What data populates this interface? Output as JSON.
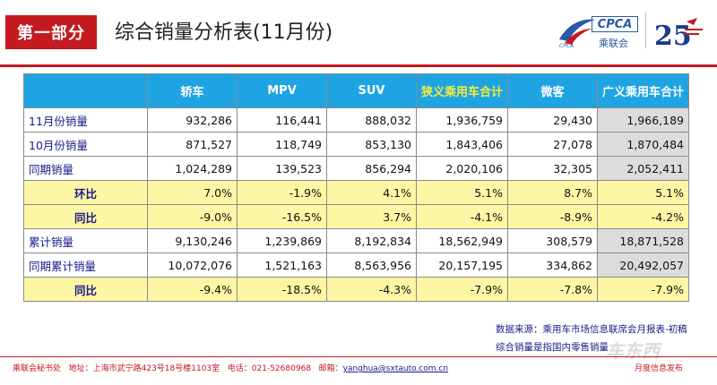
{
  "header": {
    "section_tag": "第一部分",
    "title": "综合销量分析表(11月份)"
  },
  "logo": {
    "cpca_text": "CPCA",
    "cpca_cn": "乘联会",
    "cpca_en": "CPCA",
    "anniversary_number": "25"
  },
  "table": {
    "headers": [
      "",
      "轿车",
      "MPV",
      "SUV",
      "狭义乘用车合计",
      "微客",
      "广义乘用车合计"
    ],
    "rows": [
      {
        "label": "11月份销量",
        "values": [
          "932,286",
          "116,441",
          "888,032",
          "1,936,759",
          "29,430",
          "1,966,189"
        ],
        "type": "data"
      },
      {
        "label": "10月份销量",
        "values": [
          "871,527",
          "118,749",
          "853,130",
          "1,843,406",
          "27,078",
          "1,870,484"
        ],
        "type": "data"
      },
      {
        "label": "同期销量",
        "values": [
          "1,024,289",
          "139,523",
          "856,294",
          "2,020,106",
          "32,305",
          "2,052,411"
        ],
        "type": "data"
      },
      {
        "label": "环比",
        "values": [
          "7.0%",
          "-1.9%",
          "4.1%",
          "5.1%",
          "8.7%",
          "5.1%"
        ],
        "type": "ratio"
      },
      {
        "label": "同比",
        "values": [
          "-9.0%",
          "-16.5%",
          "3.7%",
          "-4.1%",
          "-8.9%",
          "-4.2%"
        ],
        "type": "ratio"
      },
      {
        "label": "累计销量",
        "values": [
          "9,130,246",
          "1,239,869",
          "8,192,834",
          "18,562,949",
          "308,579",
          "18,871,528"
        ],
        "type": "data"
      },
      {
        "label": "同期累计销量",
        "values": [
          "10,072,076",
          "1,521,163",
          "8,563,956",
          "20,157,195",
          "334,862",
          "20,492,057"
        ],
        "type": "data"
      },
      {
        "label": "同比",
        "values": [
          "-9.4%",
          "-18.5%",
          "-4.3%",
          "-7.9%",
          "-7.8%",
          "-7.9%"
        ],
        "type": "ratio"
      }
    ]
  },
  "notes": {
    "line1": "数据来源：乘用车市场信息联席会月报表-初稿",
    "line2": "综合销量是指国内零售销量"
  },
  "footer": {
    "org": "乘联会秘书处",
    "address_label": "地址：",
    "address": "上海市武宁路423号18号楼1103室",
    "phone_label": "电话：",
    "phone": "021-52680968",
    "email_label": "邮箱：",
    "email": "yanghua@sxtauto.com.cn",
    "right": "月度信息发布"
  },
  "watermark": "车东西"
}
